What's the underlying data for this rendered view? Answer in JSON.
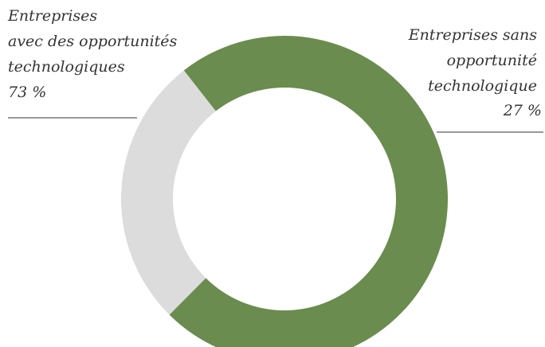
{
  "chart_data": {
    "type": "pie",
    "categories": [
      "Entreprises avec des opportunités technologiques",
      "Entreprises sans opportunité technologique"
    ],
    "values": [
      73,
      27
    ],
    "colors": [
      "#6a8c4e",
      "#dcdcdc"
    ],
    "labels": [
      {
        "lines": [
          "Entreprises",
          "avec des opportunités",
          "technologiques"
        ],
        "value_text": "73 %"
      },
      {
        "lines": [
          "Entreprises sans",
          "opportunité",
          "technologique"
        ],
        "value_text": "27 %"
      }
    ],
    "donut": true,
    "legend": "none"
  }
}
